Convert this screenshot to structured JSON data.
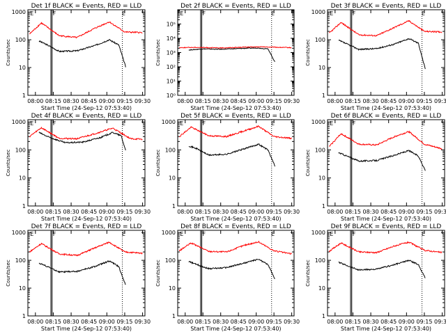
{
  "figure": {
    "background": "#ffffff",
    "axis_color": "#000000",
    "events_color": "#000000",
    "lld_color": "#ff0000"
  },
  "chart_data": [
    {
      "type": "line",
      "title": "Det  1f BLACK = Events, RED = LLD",
      "xlabel": "Start Time (24-Sep-12 07:53:40)",
      "ylabel": "Counts/sec",
      "xticks": [
        "08:00",
        "08:15",
        "08:30",
        "08:45",
        "09:00",
        "09:15",
        "09:30"
      ],
      "xlim": [
        "07:53:40",
        "09:32"
      ],
      "yscale": "log",
      "ylim": [
        1,
        1200
      ],
      "yticks": [
        "1",
        "10",
        "100",
        "1000"
      ],
      "markers": {
        "solid": [
          "08:13",
          "08:14"
        ],
        "dotted": [
          "09:13"
        ],
        "labels": [
          {
            "at": "07:55",
            "text": "E"
          },
          {
            "at": "08:14",
            "text": "F"
          },
          {
            "at": "09:12",
            "text": "E"
          }
        ]
      },
      "series": [
        {
          "name": "Events",
          "color": "#000000",
          "x": [
            "08:03",
            "08:10",
            "08:20",
            "08:35",
            "08:50",
            "09:02",
            "09:10",
            "09:16"
          ],
          "values": [
            90,
            65,
            38,
            40,
            62,
            100,
            65,
            10
          ]
        },
        {
          "name": "LLD",
          "color": "#ff0000",
          "x": [
            "07:55",
            "08:05",
            "08:20",
            "08:35",
            "08:50",
            "09:02",
            "09:15",
            "09:30"
          ],
          "values": [
            160,
            400,
            140,
            120,
            260,
            440,
            190,
            180
          ]
        }
      ]
    },
    {
      "type": "line",
      "title": "Det  2f BLACK = Events, RED = LLD",
      "xlabel": "Start Time (24-Sep-12 07:53:40)",
      "ylabel": "Counts/sec",
      "xticks": [
        "08:00",
        "08:15",
        "08:30",
        "08:45",
        "09:00",
        "09:15",
        "09:30"
      ],
      "xlim": [
        "07:53:40",
        "09:32"
      ],
      "yscale": "log",
      "ylim": [
        1,
        1000000
      ],
      "yticks": [
        "10⁰",
        "10¹",
        "10²",
        "10³",
        "10⁴",
        "10⁵"
      ],
      "markers": {
        "solid": [
          "08:13",
          "08:14"
        ],
        "dotted": [
          "09:13"
        ],
        "labels": [
          {
            "at": "07:55",
            "text": "E"
          },
          {
            "at": "08:14",
            "text": "F"
          },
          {
            "at": "09:12",
            "text": "E"
          }
        ]
      },
      "series": [
        {
          "name": "Events",
          "color": "#000000",
          "x": [
            "08:03",
            "08:15",
            "08:30",
            "08:45",
            "09:00",
            "09:10",
            "09:16"
          ],
          "values": [
            1500,
            1800,
            1700,
            1900,
            2100,
            1800,
            200
          ]
        },
        {
          "name": "LLD",
          "color": "#ff0000",
          "x": [
            "07:55",
            "08:10",
            "08:30",
            "08:50",
            "09:05",
            "09:20",
            "09:30"
          ],
          "values": [
            2200,
            2300,
            2100,
            2400,
            2500,
            2300,
            2200
          ]
        }
      ]
    },
    {
      "type": "line",
      "title": "Det  3f BLACK = Events, RED = LLD",
      "xlabel": "Start Time (24-Sep-12 07:53:40)",
      "ylabel": "Counts/sec",
      "xticks": [
        "08:00",
        "08:15",
        "08:30",
        "08:45",
        "09:00",
        "09:15",
        "09:30"
      ],
      "xlim": [
        "07:53:40",
        "09:32"
      ],
      "yscale": "log",
      "ylim": [
        1,
        1200
      ],
      "yticks": [
        "1",
        "10",
        "100",
        "1000"
      ],
      "markers": {
        "solid": [
          "08:13",
          "08:14"
        ],
        "dotted": [
          "09:13"
        ],
        "labels": [
          {
            "at": "07:55",
            "text": "E"
          },
          {
            "at": "08:14",
            "text": "F"
          },
          {
            "at": "09:12",
            "text": "E"
          }
        ]
      },
      "series": [
        {
          "name": "Events",
          "color": "#000000",
          "x": [
            "08:03",
            "08:10",
            "08:20",
            "08:35",
            "08:50",
            "09:02",
            "09:10",
            "09:16"
          ],
          "values": [
            95,
            70,
            45,
            48,
            70,
            110,
            75,
            8
          ]
        },
        {
          "name": "LLD",
          "color": "#ff0000",
          "x": [
            "07:55",
            "08:05",
            "08:20",
            "08:35",
            "08:50",
            "09:02",
            "09:15",
            "09:30"
          ],
          "values": [
            170,
            420,
            150,
            140,
            280,
            480,
            200,
            190
          ]
        }
      ]
    },
    {
      "type": "line",
      "title": "Det  4f BLACK = Events, RED = LLD",
      "xlabel": "Start Time (24-Sep-12 07:53:40)",
      "ylabel": "Counts/sec",
      "xticks": [
        "08:00",
        "08:15",
        "08:30",
        "08:45",
        "09:00",
        "09:15",
        "09:30"
      ],
      "xlim": [
        "07:53:40",
        "09:32"
      ],
      "yscale": "log",
      "ylim": [
        1,
        1200
      ],
      "yticks": [
        "1",
        "10",
        "100",
        "1000"
      ],
      "markers": {
        "solid": [
          "08:13",
          "08:14"
        ],
        "dotted": [
          "09:13"
        ],
        "labels": [
          {
            "at": "07:55",
            "text": "E"
          },
          {
            "at": "08:14",
            "text": "F"
          },
          {
            "at": "09:12",
            "text": "E"
          }
        ]
      },
      "series": [
        {
          "name": "Events",
          "color": "#000000",
          "x": [
            "08:03",
            "08:10",
            "08:25",
            "08:40",
            "08:55",
            "09:05",
            "09:12",
            "09:16"
          ],
          "values": [
            420,
            300,
            180,
            190,
            280,
            420,
            320,
            90
          ]
        },
        {
          "name": "LLD",
          "color": "#ff0000",
          "x": [
            "07:55",
            "08:05",
            "08:20",
            "08:35",
            "08:50",
            "09:05",
            "09:20",
            "09:30"
          ],
          "values": [
            300,
            620,
            260,
            250,
            380,
            600,
            250,
            240
          ]
        }
      ]
    },
    {
      "type": "line",
      "title": "Det  5f BLACK = Events, RED = LLD",
      "xlabel": "Start Time (24-Sep-12 07:53:40)",
      "ylabel": "Counts/sec",
      "xticks": [
        "08:00",
        "08:15",
        "08:30",
        "08:45",
        "09:00",
        "09:15",
        "09:30"
      ],
      "xlim": [
        "07:53:40",
        "09:32"
      ],
      "yscale": "log",
      "ylim": [
        1,
        1200
      ],
      "yticks": [
        "1",
        "10",
        "100",
        "1000"
      ],
      "markers": {
        "solid": [
          "08:13",
          "08:14"
        ],
        "dotted": [
          "09:13"
        ],
        "labels": [
          {
            "at": "07:55",
            "text": "E"
          },
          {
            "at": "08:14",
            "text": "F"
          },
          {
            "at": "09:12",
            "text": "E"
          }
        ]
      },
      "series": [
        {
          "name": "Events",
          "color": "#000000",
          "x": [
            "08:03",
            "08:10",
            "08:20",
            "08:35",
            "08:50",
            "09:02",
            "09:10",
            "09:16"
          ],
          "values": [
            140,
            110,
            65,
            70,
            110,
            160,
            100,
            25
          ]
        },
        {
          "name": "LLD",
          "color": "#ff0000",
          "x": [
            "07:55",
            "08:05",
            "08:20",
            "08:35",
            "08:50",
            "09:02",
            "09:15",
            "09:30"
          ],
          "values": [
            300,
            650,
            320,
            300,
            480,
            700,
            300,
            260
          ]
        }
      ]
    },
    {
      "type": "line",
      "title": "Det  6f BLACK = Events, RED = LLD",
      "xlabel": "Start Time (24-Sep-12 07:53:40)",
      "ylabel": "Counts/sec",
      "xticks": [
        "08:00",
        "08:15",
        "08:30",
        "08:45",
        "09:00",
        "09:15",
        "09:30"
      ],
      "xlim": [
        "07:53:40",
        "09:32"
      ],
      "yscale": "log",
      "ylim": [
        1,
        1200
      ],
      "yticks": [
        "1",
        "10",
        "100",
        "1000"
      ],
      "markers": {
        "solid": [
          "08:13",
          "08:14"
        ],
        "dotted": [
          "09:13"
        ],
        "labels": [
          {
            "at": "07:55",
            "text": "E"
          },
          {
            "at": "08:14",
            "text": "F"
          },
          {
            "at": "09:12",
            "text": "E"
          }
        ]
      },
      "series": [
        {
          "name": "Events",
          "color": "#000000",
          "x": [
            "08:03",
            "08:10",
            "08:20",
            "08:35",
            "08:50",
            "09:02",
            "09:10",
            "09:16"
          ],
          "values": [
            80,
            60,
            40,
            42,
            65,
            95,
            60,
            18
          ]
        },
        {
          "name": "LLD",
          "color": "#ff0000",
          "x": [
            "07:55",
            "08:05",
            "08:20",
            "08:35",
            "08:50",
            "09:02",
            "09:15",
            "09:30"
          ],
          "values": [
            130,
            380,
            160,
            150,
            300,
            450,
            160,
            110
          ]
        }
      ]
    },
    {
      "type": "line",
      "title": "Det  7f BLACK = Events, RED = LLD",
      "xlabel": "Start Time (24-Sep-12 07:53:40)",
      "ylabel": "Counts/sec",
      "xticks": [
        "08:00",
        "08:15",
        "08:30",
        "08:45",
        "09:00",
        "09:15",
        "09:30"
      ],
      "xlim": [
        "07:53:40",
        "09:32"
      ],
      "yscale": "log",
      "ylim": [
        1,
        1200
      ],
      "yticks": [
        "1",
        "10",
        "100",
        "1000"
      ],
      "markers": {
        "solid": [
          "08:13",
          "08:14"
        ],
        "dotted": [
          "09:13"
        ],
        "labels": [
          {
            "at": "07:55",
            "text": "E"
          },
          {
            "at": "08:14",
            "text": "F"
          },
          {
            "at": "09:12",
            "text": "E"
          }
        ]
      },
      "series": [
        {
          "name": "Events",
          "color": "#000000",
          "x": [
            "08:03",
            "08:10",
            "08:20",
            "08:35",
            "08:50",
            "09:02",
            "09:10",
            "09:16"
          ],
          "values": [
            80,
            60,
            38,
            40,
            60,
            95,
            60,
            12
          ]
        },
        {
          "name": "LLD",
          "color": "#ff0000",
          "x": [
            "07:55",
            "08:05",
            "08:20",
            "08:35",
            "08:50",
            "09:02",
            "09:15",
            "09:30"
          ],
          "values": [
            200,
            400,
            170,
            150,
            280,
            450,
            200,
            180
          ]
        }
      ]
    },
    {
      "type": "line",
      "title": "Det  8f BLACK = Events, RED = LLD",
      "xlabel": "Start Time (24-Sep-12 07:53:40)",
      "ylabel": "Counts/sec",
      "xticks": [
        "08:00",
        "08:15",
        "08:30",
        "08:45",
        "09:00",
        "09:15",
        "09:30"
      ],
      "xlim": [
        "07:53:40",
        "09:32"
      ],
      "yscale": "log",
      "ylim": [
        1,
        1200
      ],
      "yticks": [
        "1",
        "10",
        "100",
        "1000"
      ],
      "markers": {
        "solid": [
          "08:13",
          "08:14"
        ],
        "dotted": [
          "09:13"
        ],
        "labels": [
          {
            "at": "07:55",
            "text": "E"
          },
          {
            "at": "08:14",
            "text": "F"
          },
          {
            "at": "09:12",
            "text": "E"
          }
        ]
      },
      "series": [
        {
          "name": "Events",
          "color": "#000000",
          "x": [
            "08:03",
            "08:10",
            "08:20",
            "08:35",
            "08:50",
            "09:02",
            "09:10",
            "09:16"
          ],
          "values": [
            90,
            70,
            50,
            55,
            80,
            110,
            70,
            20
          ]
        },
        {
          "name": "LLD",
          "color": "#ff0000",
          "x": [
            "07:55",
            "08:05",
            "08:20",
            "08:35",
            "08:50",
            "09:02",
            "09:15",
            "09:30"
          ],
          "values": [
            220,
            420,
            210,
            200,
            350,
            460,
            220,
            170
          ]
        }
      ]
    },
    {
      "type": "line",
      "title": "Det  9f BLACK = Events, RED = LLD",
      "xlabel": "Start Time (24-Sep-12 07:53:40)",
      "ylabel": "Counts/sec",
      "xticks": [
        "08:00",
        "08:15",
        "08:30",
        "08:45",
        "09:00",
        "09:15",
        "09:30"
      ],
      "xlim": [
        "07:53:40",
        "09:32"
      ],
      "yscale": "log",
      "ylim": [
        1,
        1200
      ],
      "yticks": [
        "1",
        "10",
        "100",
        "1000"
      ],
      "markers": {
        "solid": [
          "08:13",
          "08:14"
        ],
        "dotted": [
          "09:13"
        ],
        "labels": [
          {
            "at": "07:55",
            "text": "E"
          },
          {
            "at": "08:14",
            "text": "F"
          },
          {
            "at": "09:12",
            "text": "E"
          }
        ]
      },
      "series": [
        {
          "name": "Events",
          "color": "#000000",
          "x": [
            "08:03",
            "08:10",
            "08:20",
            "08:35",
            "08:50",
            "09:02",
            "09:10",
            "09:16"
          ],
          "values": [
            85,
            65,
            45,
            48,
            70,
            100,
            70,
            22
          ]
        },
        {
          "name": "LLD",
          "color": "#ff0000",
          "x": [
            "07:55",
            "08:05",
            "08:20",
            "08:35",
            "08:50",
            "09:02",
            "09:15",
            "09:30"
          ],
          "values": [
            210,
            420,
            200,
            190,
            330,
            450,
            230,
            190
          ]
        }
      ]
    }
  ]
}
